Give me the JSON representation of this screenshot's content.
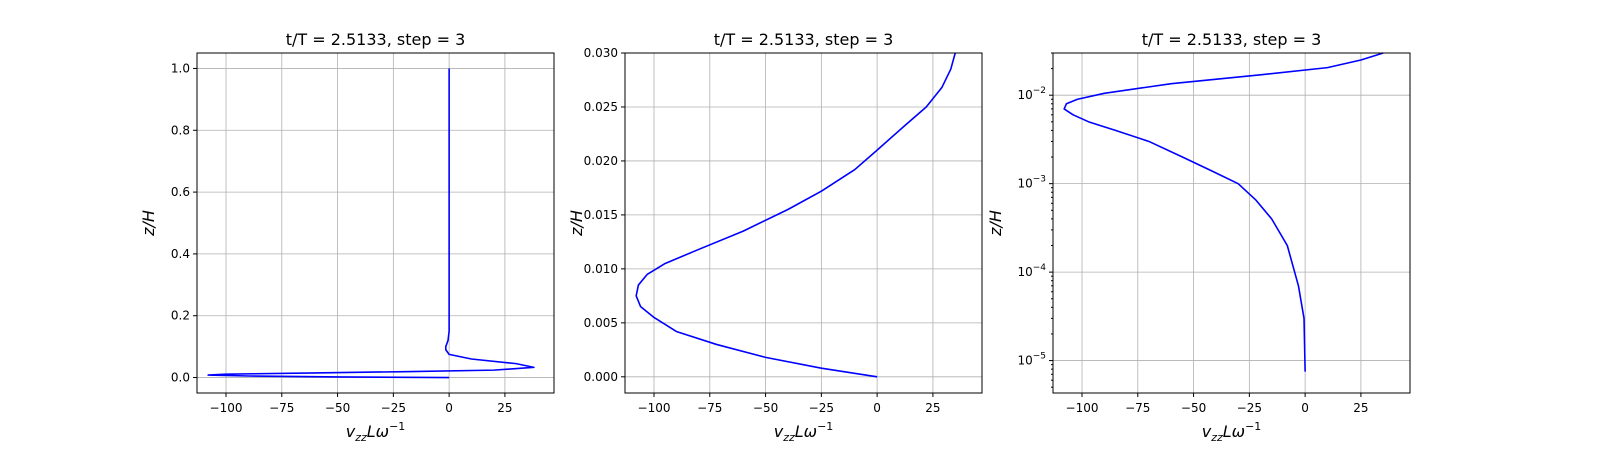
{
  "chart_data": [
    {
      "type": "line",
      "title": "t/T = 2.5133, step = 3",
      "xlabel_main": "v",
      "xlabel_sub": "zz",
      "xlabel_rest": "Lω",
      "xlabel_sup": "−1",
      "ylabel": "z/H",
      "yscale": "linear",
      "xlim": [
        -113,
        47
      ],
      "ylim": [
        -0.05,
        1.05
      ],
      "xticks": [
        -100,
        -75,
        -50,
        -25,
        0,
        25
      ],
      "xtick_labels": [
        "−100",
        "−75",
        "−50",
        "−25",
        "0",
        "25"
      ],
      "yticks": [
        0.0,
        0.2,
        0.4,
        0.6,
        0.8,
        1.0
      ],
      "ytick_labels": [
        "0.0",
        "0.2",
        "0.4",
        "0.6",
        "0.8",
        "1.0"
      ],
      "grid": true,
      "line_color": "#0000ff",
      "series": [
        {
          "x": [
            0,
            -50,
            -90,
            -108,
            -100,
            -60,
            -20,
            20,
            38,
            30,
            10,
            0,
            -1.5,
            -1.5,
            -0.5,
            0,
            0,
            0
          ],
          "y": [
            0,
            0.002,
            0.005,
            0.008,
            0.011,
            0.015,
            0.019,
            0.024,
            0.033,
            0.045,
            0.06,
            0.075,
            0.09,
            0.1,
            0.12,
            0.15,
            0.5,
            1.0
          ]
        }
      ]
    },
    {
      "type": "line",
      "title": "t/T = 2.5133, step = 3",
      "xlabel_main": "v",
      "xlabel_sub": "zz",
      "xlabel_rest": "Lω",
      "xlabel_sup": "−1",
      "ylabel": "z/H",
      "yscale": "linear",
      "xlim": [
        -113,
        47
      ],
      "ylim": [
        -0.0015,
        0.03
      ],
      "xticks": [
        -100,
        -75,
        -50,
        -25,
        0,
        25
      ],
      "xtick_labels": [
        "−100",
        "−75",
        "−50",
        "−25",
        "0",
        "25"
      ],
      "yticks": [
        0.0,
        0.005,
        0.01,
        0.015,
        0.02,
        0.025,
        0.03
      ],
      "ytick_labels": [
        "0.000",
        "0.005",
        "0.010",
        "0.015",
        "0.020",
        "0.025",
        "0.030"
      ],
      "grid": true,
      "line_color": "#0000ff",
      "series": [
        {
          "x": [
            0,
            -25,
            -50,
            -72,
            -90,
            -100,
            -106,
            -108,
            -107,
            -103,
            -95,
            -80,
            -60,
            -40,
            -25,
            -10,
            0,
            12,
            22,
            29,
            33,
            35
          ],
          "y": [
            0,
            0.0008,
            0.0018,
            0.003,
            0.0042,
            0.0055,
            0.0065,
            0.0075,
            0.0085,
            0.0095,
            0.0105,
            0.0118,
            0.0135,
            0.0155,
            0.0172,
            0.0192,
            0.021,
            0.0232,
            0.025,
            0.0268,
            0.0285,
            0.03
          ]
        }
      ]
    },
    {
      "type": "line",
      "title": "t/T = 2.5133, step = 3",
      "xlabel_main": "v",
      "xlabel_sub": "zz",
      "xlabel_rest": "Lω",
      "xlabel_sup": "−1",
      "ylabel": "z/H",
      "yscale": "log",
      "xlim": [
        -113,
        47
      ],
      "ylim": [
        4.3e-06,
        0.03
      ],
      "xticks": [
        -100,
        -75,
        -50,
        -25,
        0,
        25
      ],
      "xtick_labels": [
        "−100",
        "−75",
        "−50",
        "−25",
        "0",
        "25"
      ],
      "yticks": [
        1e-05,
        0.0001,
        0.001,
        0.01
      ],
      "ytick_labels": [
        [
          "10",
          "−5"
        ],
        [
          "10",
          "−4"
        ],
        [
          "10",
          "−3"
        ],
        [
          "10",
          "−2"
        ]
      ],
      "grid": true,
      "line_color": "#0000ff",
      "series": [
        {
          "x": [
            0,
            -0.5,
            -3,
            -8,
            -15,
            -22,
            -30,
            -42,
            -55,
            -70,
            -85,
            -97,
            -104,
            -108,
            -107,
            -102,
            -90,
            -60,
            -20,
            10,
            25,
            35
          ],
          "y": [
            7.5e-06,
            3e-05,
            7e-05,
            0.0002,
            0.0004,
            0.00065,
            0.001,
            0.0014,
            0.002,
            0.003,
            0.004,
            0.005,
            0.006,
            0.007,
            0.008,
            0.009,
            0.0105,
            0.0135,
            0.017,
            0.0205,
            0.025,
            0.03
          ]
        }
      ]
    }
  ]
}
